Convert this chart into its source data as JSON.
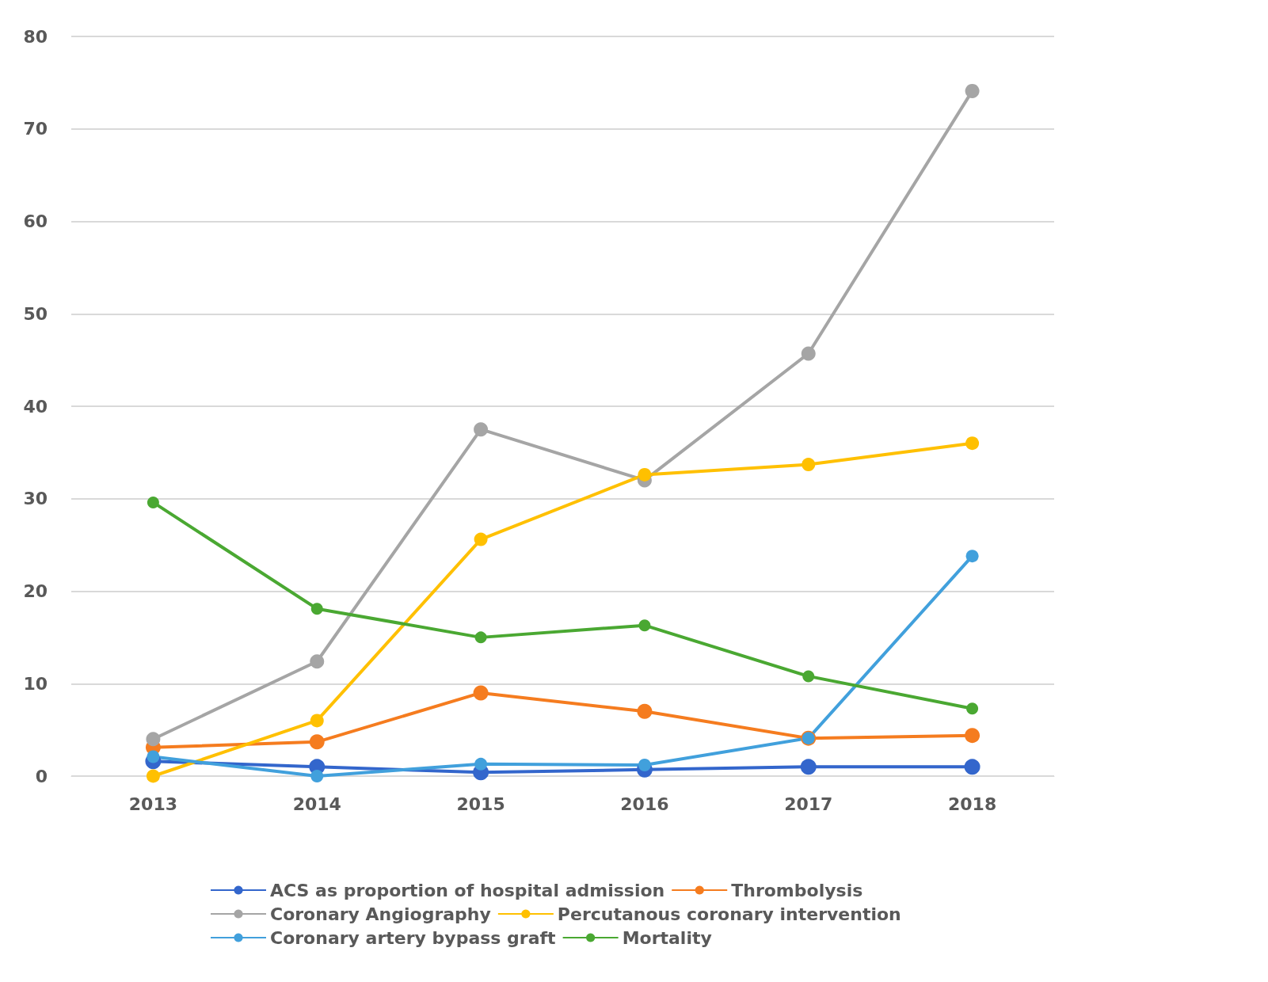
{
  "chart_data": {
    "type": "line",
    "categories": [
      "2013",
      "2014",
      "2015",
      "2016",
      "2017",
      "2018"
    ],
    "series": [
      {
        "name": "ACS as proportion of hospital admission",
        "color": "#3366cc",
        "values": [
          1.6,
          1.0,
          0.4,
          0.7,
          1.0,
          1.0
        ]
      },
      {
        "name": "Thrombolysis",
        "color": "#f57c1f",
        "values": [
          3.1,
          3.7,
          9.0,
          7.0,
          4.1,
          4.4
        ]
      },
      {
        "name": "Coronary Angiography",
        "color": "#a5a5a5",
        "values": [
          4.0,
          12.4,
          37.5,
          32.0,
          45.7,
          74.1
        ]
      },
      {
        "name": "Percutanous coronary intervention",
        "color": "#ffc000",
        "values": [
          0,
          6.0,
          25.6,
          32.6,
          33.7,
          36.0
        ]
      },
      {
        "name": "Coronary artery bypass graft",
        "color": "#41a0dc",
        "values": [
          2.1,
          0,
          1.3,
          1.2,
          4.1,
          23.8
        ]
      },
      {
        "name": "Mortality",
        "color": "#4aa832",
        "values": [
          29.6,
          18.1,
          15.0,
          16.3,
          10.8,
          7.3
        ]
      }
    ],
    "ylim": [
      0,
      80
    ],
    "yticks": [
      0,
      10,
      20,
      30,
      40,
      50,
      60,
      70,
      80
    ],
    "grid": "y",
    "legend": "bottom",
    "marker": "circle",
    "line_style": "solid"
  }
}
